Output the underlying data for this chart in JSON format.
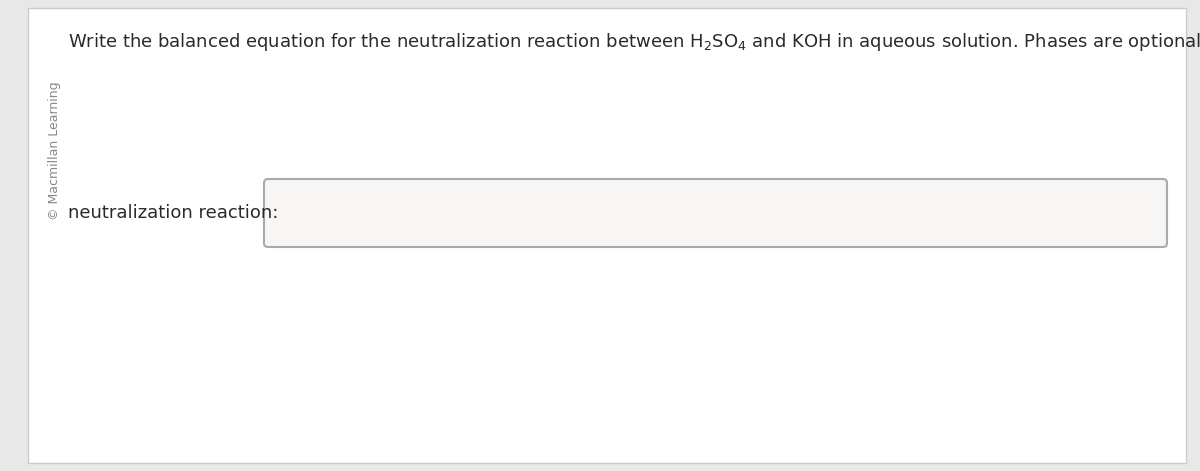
{
  "bg_color": "#e8e8e8",
  "panel_color": "#ffffff",
  "panel_border_color": "#cccccc",
  "main_text": "Write the balanced equation for the neutralization reaction between $\\mathregular{H_2SO_4}$ and KOH in aqueous solution. Phases are optional.",
  "label_text": "neutralization reaction:",
  "sidebar_text": "© Macmillan Learning",
  "sidebar_color": "#888888",
  "text_color": "#2a2a2a",
  "input_box_color": "#f7f6f4",
  "input_box_border": "#aaaaaa"
}
